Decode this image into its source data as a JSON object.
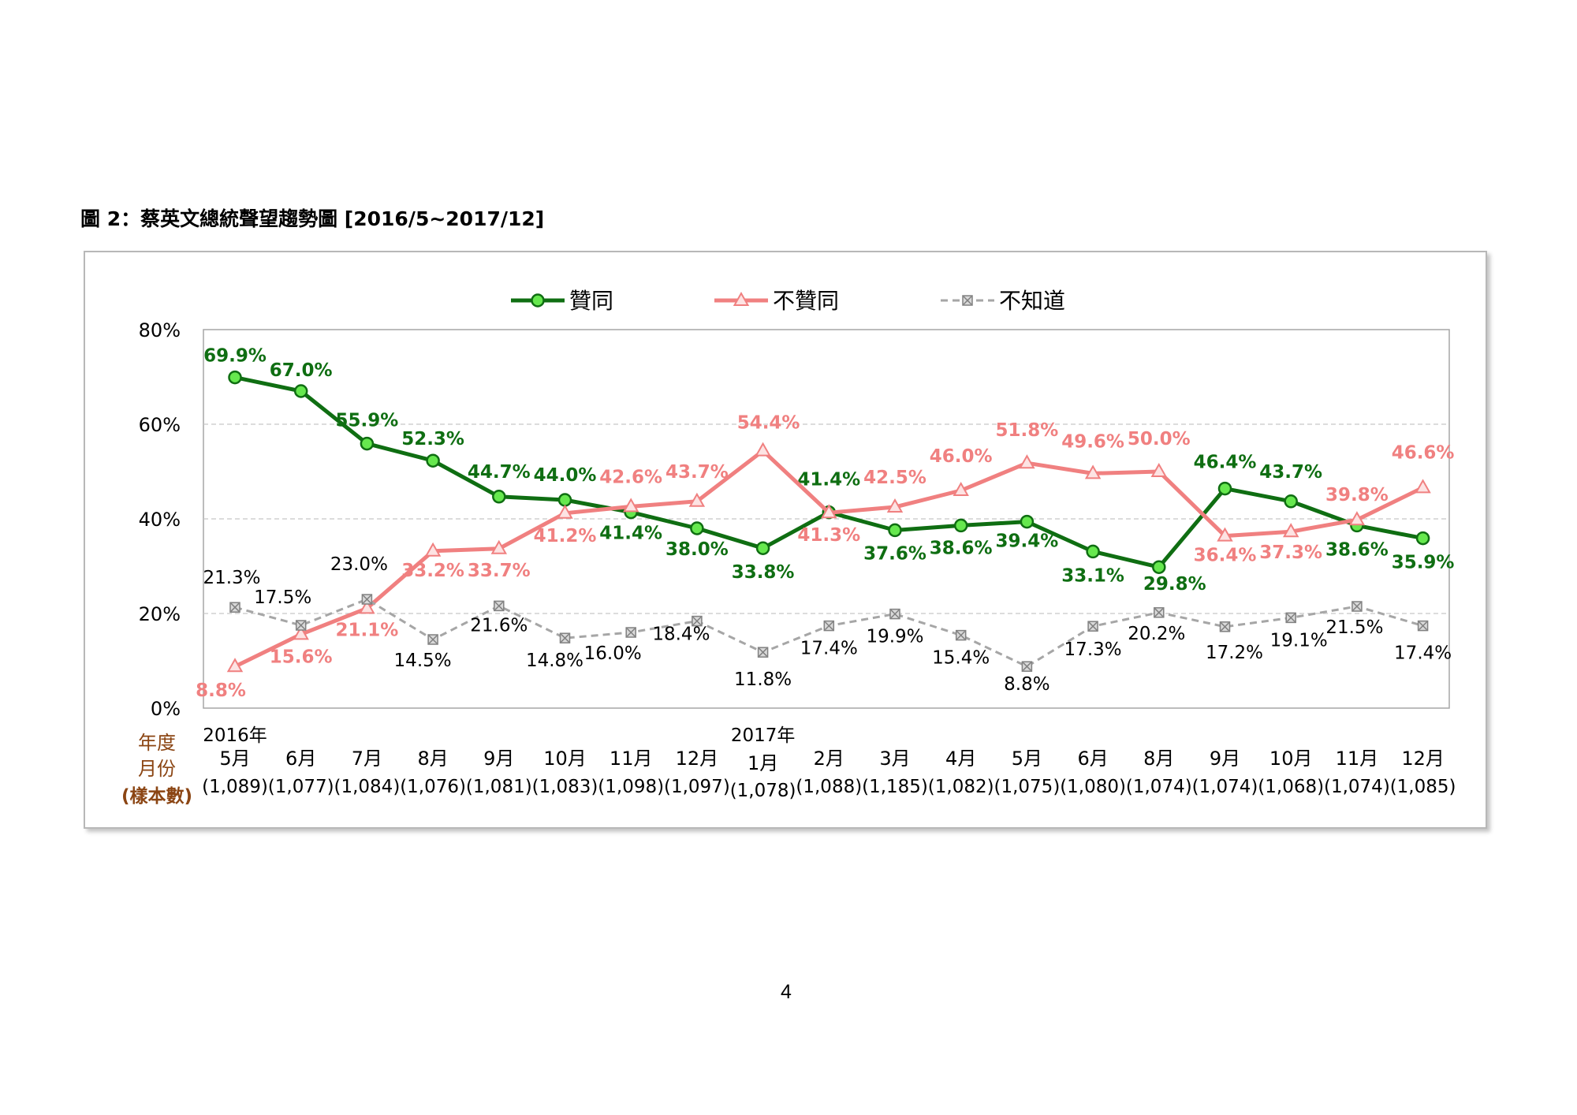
{
  "figure_title": "圖 2：蔡英文總統聲望趨勢圖  [2016/5~2017/12]",
  "page_number": "4",
  "axis_caption": {
    "year": "年度",
    "month": "月份",
    "sample": "(樣本數)"
  },
  "colors": {
    "approve": "#0f6e12",
    "approve_marker": "#66e84e",
    "disapprove": "#f08080",
    "unknown": "#a6a6a6"
  },
  "chart_data": {
    "type": "line",
    "ylim": [
      0,
      80
    ],
    "yticks": [
      "0%",
      "20%",
      "40%",
      "60%",
      "80%"
    ],
    "ytick_values": [
      0,
      20,
      40,
      60,
      80
    ],
    "grid": true,
    "legend_position": "top-center",
    "year_labels": [
      {
        "index": 0,
        "text": "2016年"
      },
      {
        "index": 8,
        "text": "2017年"
      }
    ],
    "categories": [
      "5月",
      "6月",
      "7月",
      "8月",
      "9月",
      "10月",
      "11月",
      "12月",
      "1月",
      "2月",
      "3月",
      "4月",
      "5月",
      "6月",
      "8月",
      "9月",
      "10月",
      "11月",
      "12月"
    ],
    "sample_sizes": [
      "(1,089)",
      "(1,077)",
      "(1,084)",
      "(1,076)",
      "(1,081)",
      "(1,083)",
      "(1,098)",
      "(1,097)",
      "(1,078)",
      "(1,088)",
      "(1,185)",
      "(1,082)",
      "(1,075)",
      "(1,080)",
      "(1,074)",
      "(1,074)",
      "(1,068)",
      "(1,074)",
      "(1,085)"
    ],
    "series": [
      {
        "name": "贊同",
        "key": "approve",
        "values": [
          69.9,
          67.0,
          55.9,
          52.3,
          44.7,
          44.0,
          41.4,
          38.0,
          33.8,
          41.4,
          37.6,
          38.6,
          39.4,
          33.1,
          29.8,
          46.4,
          43.7,
          38.6,
          35.9
        ],
        "labels": [
          "69.9%",
          "67.0%",
          "55.9%",
          "52.3%",
          "44.7%",
          "44.0%",
          "41.4%",
          "38.0%",
          "33.8%",
          "41.4%",
          "37.6%",
          "38.6%",
          "39.4%",
          "33.1%",
          "29.8%",
          "46.4%",
          "43.7%",
          "38.6%",
          "35.9%"
        ]
      },
      {
        "name": "不贊同",
        "key": "disapprove",
        "values": [
          8.8,
          15.6,
          21.1,
          33.2,
          33.7,
          41.2,
          42.6,
          43.7,
          54.4,
          41.3,
          42.5,
          46.0,
          51.8,
          49.6,
          50.0,
          36.4,
          37.3,
          39.8,
          46.6
        ],
        "labels": [
          "8.8%",
          "15.6%",
          "21.1%",
          "33.2%",
          "33.7%",
          "41.2%",
          "42.6%",
          "43.7%",
          "54.4%",
          "41.3%",
          "42.5%",
          "46.0%",
          "51.8%",
          "49.6%",
          "50.0%",
          "36.4%",
          "37.3%",
          "39.8%",
          "46.6%"
        ]
      },
      {
        "name": "不知道",
        "key": "unknown",
        "values": [
          21.3,
          17.5,
          23.0,
          14.5,
          21.6,
          14.8,
          16.0,
          18.4,
          11.8,
          17.4,
          19.9,
          15.4,
          8.8,
          17.3,
          20.2,
          17.2,
          19.1,
          21.5,
          17.4
        ],
        "labels": [
          "21.3%",
          "17.5%",
          "23.0%",
          "14.5%",
          "21.6%",
          "14.8%",
          "16.0%",
          "18.4%",
          "11.8%",
          "17.4%",
          "19.9%",
          "15.4%",
          "8.8%",
          "17.3%",
          "20.2%",
          "17.2%",
          "19.1%",
          "21.5%",
          "17.4%"
        ]
      }
    ]
  }
}
